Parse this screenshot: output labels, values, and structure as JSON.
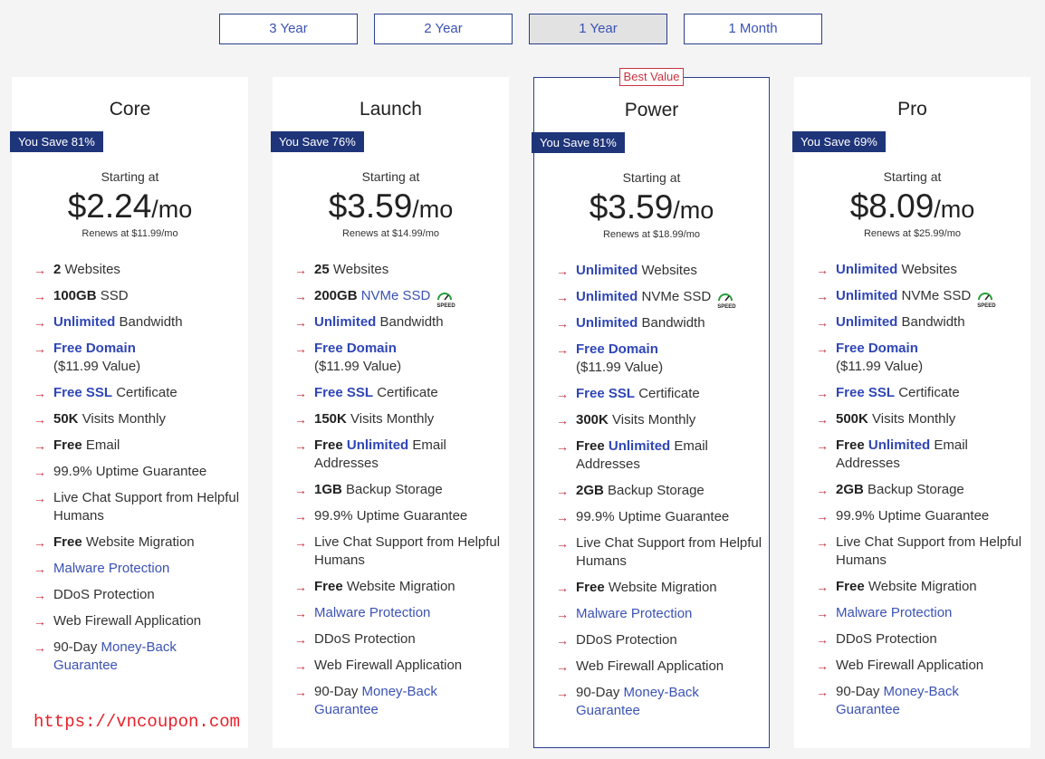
{
  "term_tabs": [
    {
      "label": "3 Year",
      "active": false
    },
    {
      "label": "2 Year",
      "active": false
    },
    {
      "label": "1 Year",
      "active": true
    },
    {
      "label": "1 Month",
      "active": false
    }
  ],
  "plans": [
    {
      "name": "Core",
      "badge": "",
      "save": "You Save 81%",
      "starting": "Starting at",
      "price": "$2.24",
      "unit": "/mo",
      "renews": "Renews at $11.99/mo",
      "features": [
        [
          {
            "t": "2",
            "s": "bold"
          },
          {
            "t": " Websites",
            "s": "plain"
          }
        ],
        [
          {
            "t": "100GB",
            "s": "bold"
          },
          {
            "t": " SSD",
            "s": "plain"
          }
        ],
        [
          {
            "t": "Unlimited",
            "s": "blue-bold"
          },
          {
            "t": " Bandwidth",
            "s": "plain"
          }
        ],
        [
          {
            "t": "Free Domain",
            "s": "blue-bold"
          },
          {
            "t": "($11.99 Value)",
            "s": "plain-block"
          }
        ],
        [
          {
            "t": "Free SSL",
            "s": "blue-bold"
          },
          {
            "t": " Certificate",
            "s": "plain"
          }
        ],
        [
          {
            "t": "50K",
            "s": "bold"
          },
          {
            "t": " Visits Monthly",
            "s": "plain"
          }
        ],
        [
          {
            "t": "Free",
            "s": "bold"
          },
          {
            "t": " Email",
            "s": "plain"
          }
        ],
        [
          {
            "t": "99.9% Uptime Guarantee",
            "s": "plain"
          }
        ],
        [
          {
            "t": "Live Chat Support from Helpful Humans",
            "s": "plain"
          }
        ],
        [
          {
            "t": "Free",
            "s": "bold"
          },
          {
            "t": " Website Migration",
            "s": "plain"
          }
        ],
        [
          {
            "t": "Malware Protection",
            "s": "link"
          }
        ],
        [
          {
            "t": "DDoS Protection",
            "s": "plain"
          }
        ],
        [
          {
            "t": "Web Firewall Application",
            "s": "plain"
          }
        ],
        [
          {
            "t": "90-Day ",
            "s": "plain"
          },
          {
            "t": "Money-Back Guarantee",
            "s": "link"
          }
        ]
      ]
    },
    {
      "name": "Launch",
      "badge": "",
      "save": "You Save 76%",
      "starting": "Starting at",
      "price": "$3.59",
      "unit": "/mo",
      "renews": "Renews at $14.99/mo",
      "features": [
        [
          {
            "t": "25",
            "s": "bold"
          },
          {
            "t": " Websites",
            "s": "plain"
          }
        ],
        [
          {
            "t": "200GB",
            "s": "bold"
          },
          {
            "t": " NVMe SSD",
            "s": "link"
          },
          {
            "t": "",
            "s": "speed"
          }
        ],
        [
          {
            "t": "Unlimited",
            "s": "blue-bold"
          },
          {
            "t": " Bandwidth",
            "s": "plain"
          }
        ],
        [
          {
            "t": "Free Domain",
            "s": "blue-bold"
          },
          {
            "t": "($11.99 Value)",
            "s": "plain-block"
          }
        ],
        [
          {
            "t": "Free SSL",
            "s": "blue-bold"
          },
          {
            "t": " Certificate",
            "s": "plain"
          }
        ],
        [
          {
            "t": "150K",
            "s": "bold"
          },
          {
            "t": " Visits Monthly",
            "s": "plain"
          }
        ],
        [
          {
            "t": "Free",
            "s": "bold"
          },
          {
            "t": " ",
            "s": "plain"
          },
          {
            "t": "Unlimited",
            "s": "blue-bold"
          },
          {
            "t": " Email Addresses",
            "s": "plain"
          }
        ],
        [
          {
            "t": "1GB",
            "s": "bold"
          },
          {
            "t": " Backup Storage",
            "s": "plain"
          }
        ],
        [
          {
            "t": "99.9% Uptime Guarantee",
            "s": "plain"
          }
        ],
        [
          {
            "t": "Live Chat Support from Helpful Humans",
            "s": "plain"
          }
        ],
        [
          {
            "t": "Free",
            "s": "bold"
          },
          {
            "t": " Website Migration",
            "s": "plain"
          }
        ],
        [
          {
            "t": "Malware Protection",
            "s": "link"
          }
        ],
        [
          {
            "t": "DDoS Protection",
            "s": "plain"
          }
        ],
        [
          {
            "t": "Web Firewall Application",
            "s": "plain"
          }
        ],
        [
          {
            "t": "90-Day ",
            "s": "plain"
          },
          {
            "t": "Money-Back Guarantee",
            "s": "link"
          }
        ]
      ]
    },
    {
      "name": "Power",
      "badge": "Best Value",
      "save": "You Save 81%",
      "starting": "Starting at",
      "price": "$3.59",
      "unit": "/mo",
      "renews": "Renews at $18.99/mo",
      "features": [
        [
          {
            "t": "Unlimited",
            "s": "blue-bold"
          },
          {
            "t": " Websites",
            "s": "plain"
          }
        ],
        [
          {
            "t": "Unlimited",
            "s": "blue-bold"
          },
          {
            "t": " NVMe SSD",
            "s": "plain"
          },
          {
            "t": "",
            "s": "speed"
          }
        ],
        [
          {
            "t": "Unlimited",
            "s": "blue-bold"
          },
          {
            "t": " Bandwidth",
            "s": "plain"
          }
        ],
        [
          {
            "t": "Free Domain",
            "s": "blue-bold"
          },
          {
            "t": "($11.99 Value)",
            "s": "plain-block"
          }
        ],
        [
          {
            "t": "Free SSL",
            "s": "blue-bold"
          },
          {
            "t": " Certificate",
            "s": "plain"
          }
        ],
        [
          {
            "t": "300K",
            "s": "bold"
          },
          {
            "t": " Visits Monthly",
            "s": "plain"
          }
        ],
        [
          {
            "t": "Free",
            "s": "bold"
          },
          {
            "t": " ",
            "s": "plain"
          },
          {
            "t": "Unlimited",
            "s": "blue-bold"
          },
          {
            "t": " Email Addresses",
            "s": "plain"
          }
        ],
        [
          {
            "t": "2GB",
            "s": "bold"
          },
          {
            "t": " Backup Storage",
            "s": "plain"
          }
        ],
        [
          {
            "t": "99.9% Uptime Guarantee",
            "s": "plain"
          }
        ],
        [
          {
            "t": "Live Chat Support from Helpful Humans",
            "s": "plain"
          }
        ],
        [
          {
            "t": "Free",
            "s": "bold"
          },
          {
            "t": " Website Migration",
            "s": "plain"
          }
        ],
        [
          {
            "t": "Malware Protection",
            "s": "link"
          }
        ],
        [
          {
            "t": "DDoS Protection",
            "s": "plain"
          }
        ],
        [
          {
            "t": "Web Firewall Application",
            "s": "plain"
          }
        ],
        [
          {
            "t": "90-Day ",
            "s": "plain"
          },
          {
            "t": "Money-Back Guarantee",
            "s": "link"
          }
        ]
      ]
    },
    {
      "name": "Pro",
      "badge": "",
      "save": "You Save 69%",
      "starting": "Starting at",
      "price": "$8.09",
      "unit": "/mo",
      "renews": "Renews at $25.99/mo",
      "features": [
        [
          {
            "t": "Unlimited",
            "s": "blue-bold"
          },
          {
            "t": " Websites",
            "s": "plain"
          }
        ],
        [
          {
            "t": "Unlimited",
            "s": "blue-bold"
          },
          {
            "t": " NVMe SSD",
            "s": "plain"
          },
          {
            "t": "",
            "s": "speed"
          }
        ],
        [
          {
            "t": "Unlimited",
            "s": "blue-bold"
          },
          {
            "t": " Bandwidth",
            "s": "plain"
          }
        ],
        [
          {
            "t": "Free Domain",
            "s": "blue-bold"
          },
          {
            "t": "($11.99 Value)",
            "s": "plain-block"
          }
        ],
        [
          {
            "t": "Free SSL",
            "s": "blue-bold"
          },
          {
            "t": " Certificate",
            "s": "plain"
          }
        ],
        [
          {
            "t": "500K",
            "s": "bold"
          },
          {
            "t": " Visits Monthly",
            "s": "plain"
          }
        ],
        [
          {
            "t": "Free",
            "s": "bold"
          },
          {
            "t": " ",
            "s": "plain"
          },
          {
            "t": "Unlimited",
            "s": "blue-bold"
          },
          {
            "t": " Email Addresses",
            "s": "plain"
          }
        ],
        [
          {
            "t": "2GB",
            "s": "bold"
          },
          {
            "t": " Backup Storage",
            "s": "plain"
          }
        ],
        [
          {
            "t": "99.9% Uptime Guarantee",
            "s": "plain"
          }
        ],
        [
          {
            "t": "Live Chat Support from Helpful Humans",
            "s": "plain"
          }
        ],
        [
          {
            "t": "Free",
            "s": "bold"
          },
          {
            "t": " Website Migration",
            "s": "plain"
          }
        ],
        [
          {
            "t": "Malware Protection",
            "s": "link"
          }
        ],
        [
          {
            "t": "DDoS Protection",
            "s": "plain"
          }
        ],
        [
          {
            "t": "Web Firewall Application",
            "s": "plain"
          }
        ],
        [
          {
            "t": "90-Day ",
            "s": "plain"
          },
          {
            "t": "Money-Back Guarantee",
            "s": "link"
          }
        ]
      ]
    }
  ],
  "speed_icon_label": "SPEED",
  "arrow_glyph": "→",
  "watermark": "https://vncoupon.com",
  "colors": {
    "accent": "#2f46b6",
    "badge_bg": "#1f357a",
    "arrow": "#c8333f",
    "watermark": "#e8202a"
  }
}
